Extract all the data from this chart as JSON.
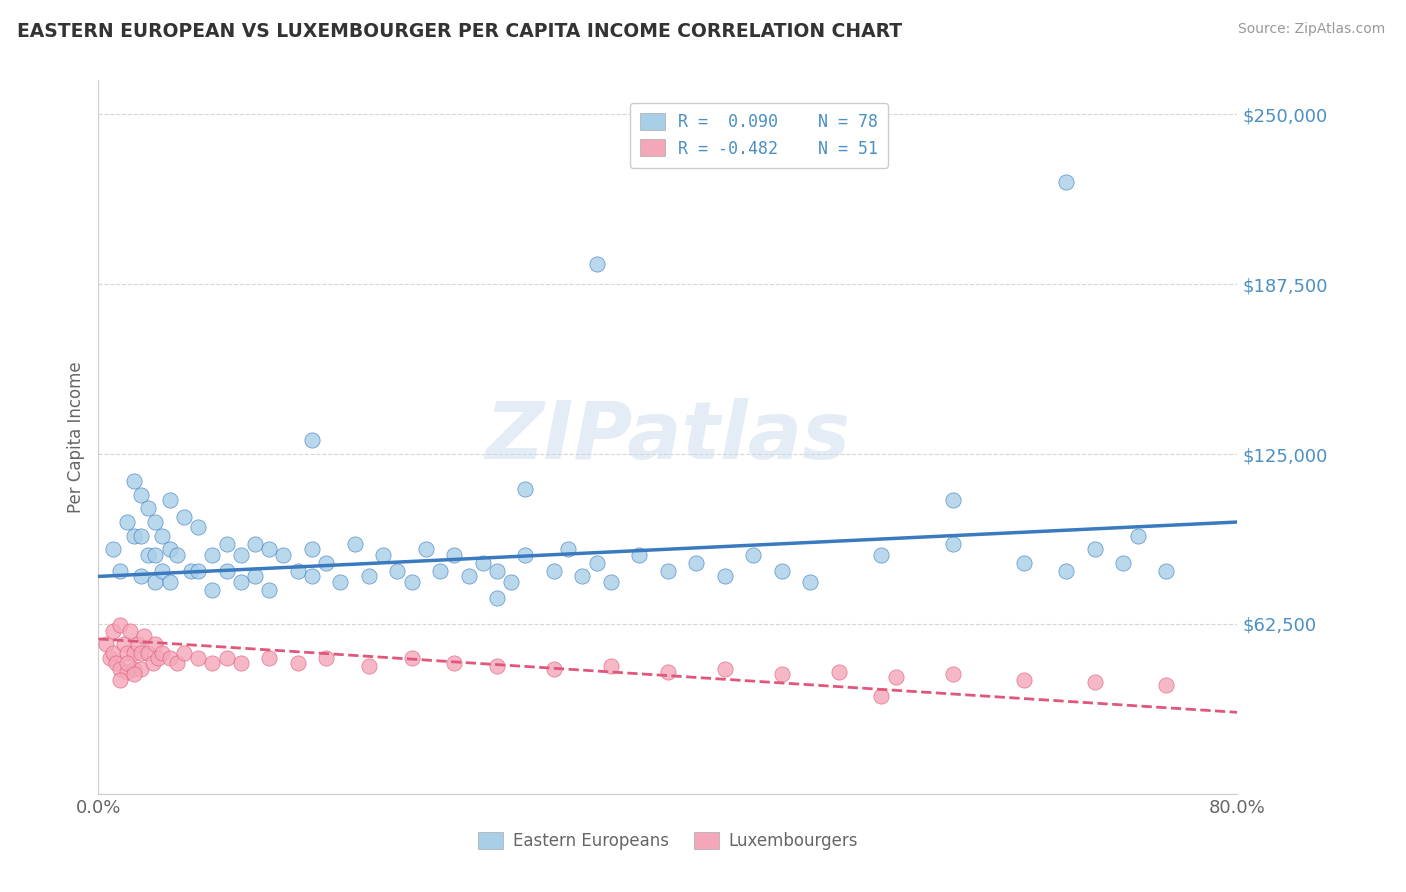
{
  "title": "EASTERN EUROPEAN VS LUXEMBOURGER PER CAPITA INCOME CORRELATION CHART",
  "source": "Source: ZipAtlas.com",
  "ylabel": "Per Capita Income",
  "xlim": [
    0.0,
    0.8
  ],
  "ylim": [
    0,
    262500
  ],
  "yticks": [
    0,
    62500,
    125000,
    187500,
    250000
  ],
  "ytick_labels": [
    "",
    "$62,500",
    "$125,000",
    "$187,500",
    "$250,000"
  ],
  "xticks": [
    0.0,
    0.1,
    0.2,
    0.3,
    0.4,
    0.5,
    0.6,
    0.7,
    0.8
  ],
  "xtick_labels": [
    "0.0%",
    "",
    "",
    "",
    "",
    "",
    "",
    "",
    "80.0%"
  ],
  "blue_color": "#a8cfe8",
  "pink_color": "#f4a7b9",
  "blue_line_color": "#3a7abf",
  "pink_line_color": "#e0577a",
  "title_color": "#333333",
  "axis_label_color": "#666666",
  "tick_label_color": "#4a90c4",
  "watermark": "ZIPatlas",
  "legend_r_blue": "R =  0.090",
  "legend_n_blue": "N = 78",
  "legend_r_pink": "R = -0.482",
  "legend_n_pink": "N = 51",
  "legend_label_blue": "Eastern Europeans",
  "legend_label_pink": "Luxembourgers",
  "blue_scatter_x": [
    0.01,
    0.015,
    0.02,
    0.025,
    0.025,
    0.03,
    0.03,
    0.03,
    0.035,
    0.035,
    0.04,
    0.04,
    0.04,
    0.045,
    0.045,
    0.05,
    0.05,
    0.05,
    0.055,
    0.06,
    0.065,
    0.07,
    0.07,
    0.08,
    0.08,
    0.09,
    0.09,
    0.1,
    0.1,
    0.11,
    0.11,
    0.12,
    0.12,
    0.13,
    0.14,
    0.15,
    0.15,
    0.16,
    0.17,
    0.18,
    0.19,
    0.2,
    0.21,
    0.22,
    0.23,
    0.24,
    0.25,
    0.26,
    0.27,
    0.28,
    0.29,
    0.3,
    0.32,
    0.33,
    0.34,
    0.35,
    0.36,
    0.38,
    0.4,
    0.42,
    0.44,
    0.46,
    0.48,
    0.5,
    0.55,
    0.6,
    0.65,
    0.68,
    0.7,
    0.72,
    0.75,
    0.3,
    0.35,
    0.6,
    0.68,
    0.73,
    0.28,
    0.15
  ],
  "blue_scatter_y": [
    90000,
    82000,
    100000,
    115000,
    95000,
    110000,
    95000,
    80000,
    105000,
    88000,
    100000,
    88000,
    78000,
    95000,
    82000,
    108000,
    90000,
    78000,
    88000,
    102000,
    82000,
    98000,
    82000,
    88000,
    75000,
    92000,
    82000,
    88000,
    78000,
    92000,
    80000,
    90000,
    75000,
    88000,
    82000,
    90000,
    80000,
    85000,
    78000,
    92000,
    80000,
    88000,
    82000,
    78000,
    90000,
    82000,
    88000,
    80000,
    85000,
    82000,
    78000,
    88000,
    82000,
    90000,
    80000,
    85000,
    78000,
    88000,
    82000,
    85000,
    80000,
    88000,
    82000,
    78000,
    88000,
    92000,
    85000,
    82000,
    90000,
    85000,
    82000,
    112000,
    195000,
    108000,
    225000,
    95000,
    72000,
    130000
  ],
  "pink_scatter_x": [
    0.005,
    0.008,
    0.01,
    0.01,
    0.012,
    0.015,
    0.015,
    0.018,
    0.02,
    0.02,
    0.022,
    0.025,
    0.025,
    0.028,
    0.03,
    0.03,
    0.032,
    0.035,
    0.038,
    0.04,
    0.042,
    0.045,
    0.05,
    0.055,
    0.06,
    0.07,
    0.08,
    0.09,
    0.1,
    0.12,
    0.14,
    0.16,
    0.19,
    0.22,
    0.25,
    0.28,
    0.32,
    0.36,
    0.4,
    0.44,
    0.48,
    0.52,
    0.56,
    0.6,
    0.65,
    0.7,
    0.75,
    0.015,
    0.02,
    0.025,
    0.55
  ],
  "pink_scatter_y": [
    55000,
    50000,
    60000,
    52000,
    48000,
    62000,
    46000,
    55000,
    52000,
    45000,
    60000,
    52000,
    46000,
    55000,
    52000,
    46000,
    58000,
    52000,
    48000,
    55000,
    50000,
    52000,
    50000,
    48000,
    52000,
    50000,
    48000,
    50000,
    48000,
    50000,
    48000,
    50000,
    47000,
    50000,
    48000,
    47000,
    46000,
    47000,
    45000,
    46000,
    44000,
    45000,
    43000,
    44000,
    42000,
    41000,
    40000,
    42000,
    48000,
    44000,
    36000
  ],
  "blue_trend_x": [
    0.0,
    0.8
  ],
  "blue_trend_y": [
    80000,
    100000
  ],
  "pink_trend_x": [
    0.0,
    0.8
  ],
  "pink_trend_y": [
    57000,
    30000
  ],
  "grid_color": "#cccccc",
  "background_color": "#ffffff"
}
